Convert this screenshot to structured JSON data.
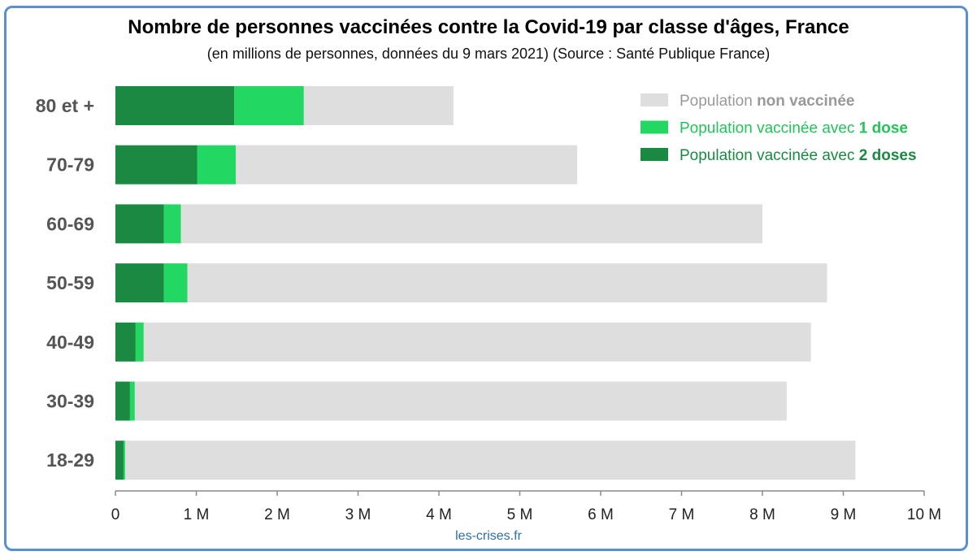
{
  "chart_data": {
    "type": "bar",
    "orientation": "horizontal",
    "stacked": true,
    "title": "Nombre de personnes vaccinées contre la Covid-19 par classe d'âges, France",
    "subtitle": "(en millions de personnes, données du 9 mars 2021) (Source : Santé Publique France)",
    "categories": [
      "80 et +",
      "70-79",
      "60-69",
      "50-59",
      "40-49",
      "30-39",
      "18-29"
    ],
    "series": [
      {
        "name": "2 doses",
        "color": "#1a8a42",
        "values": [
          1.47,
          1.01,
          0.6,
          0.6,
          0.25,
          0.18,
          0.1
        ]
      },
      {
        "name": "1 dose",
        "color": "#22d862",
        "values": [
          0.86,
          0.48,
          0.21,
          0.29,
          0.1,
          0.06,
          0.02
        ]
      },
      {
        "name": "non vaccinée",
        "color": "#dedede",
        "values": [
          1.85,
          4.22,
          7.19,
          7.91,
          8.25,
          8.06,
          9.03
        ]
      }
    ],
    "xlim": [
      0,
      10
    ],
    "xticks": [
      "0",
      "1 M",
      "2 M",
      "3 M",
      "4 M",
      "5 M",
      "6 M",
      "7 M",
      "8 M",
      "9 M",
      "10 M"
    ],
    "grid": false,
    "legend": {
      "position": "top-right",
      "items": [
        {
          "prefix": "Population ",
          "bold": "non vaccinée",
          "color": "#dedede",
          "text_color": "#999999"
        },
        {
          "prefix": "Population vaccinée avec ",
          "bold": "1 dose",
          "color": "#22d862",
          "text_color": "#22c45a"
        },
        {
          "prefix": "Population vaccinée avec ",
          "bold": "2 doses",
          "color": "#1a8a42",
          "text_color": "#1a8a42"
        }
      ]
    }
  },
  "credit": "les-crises.fr"
}
